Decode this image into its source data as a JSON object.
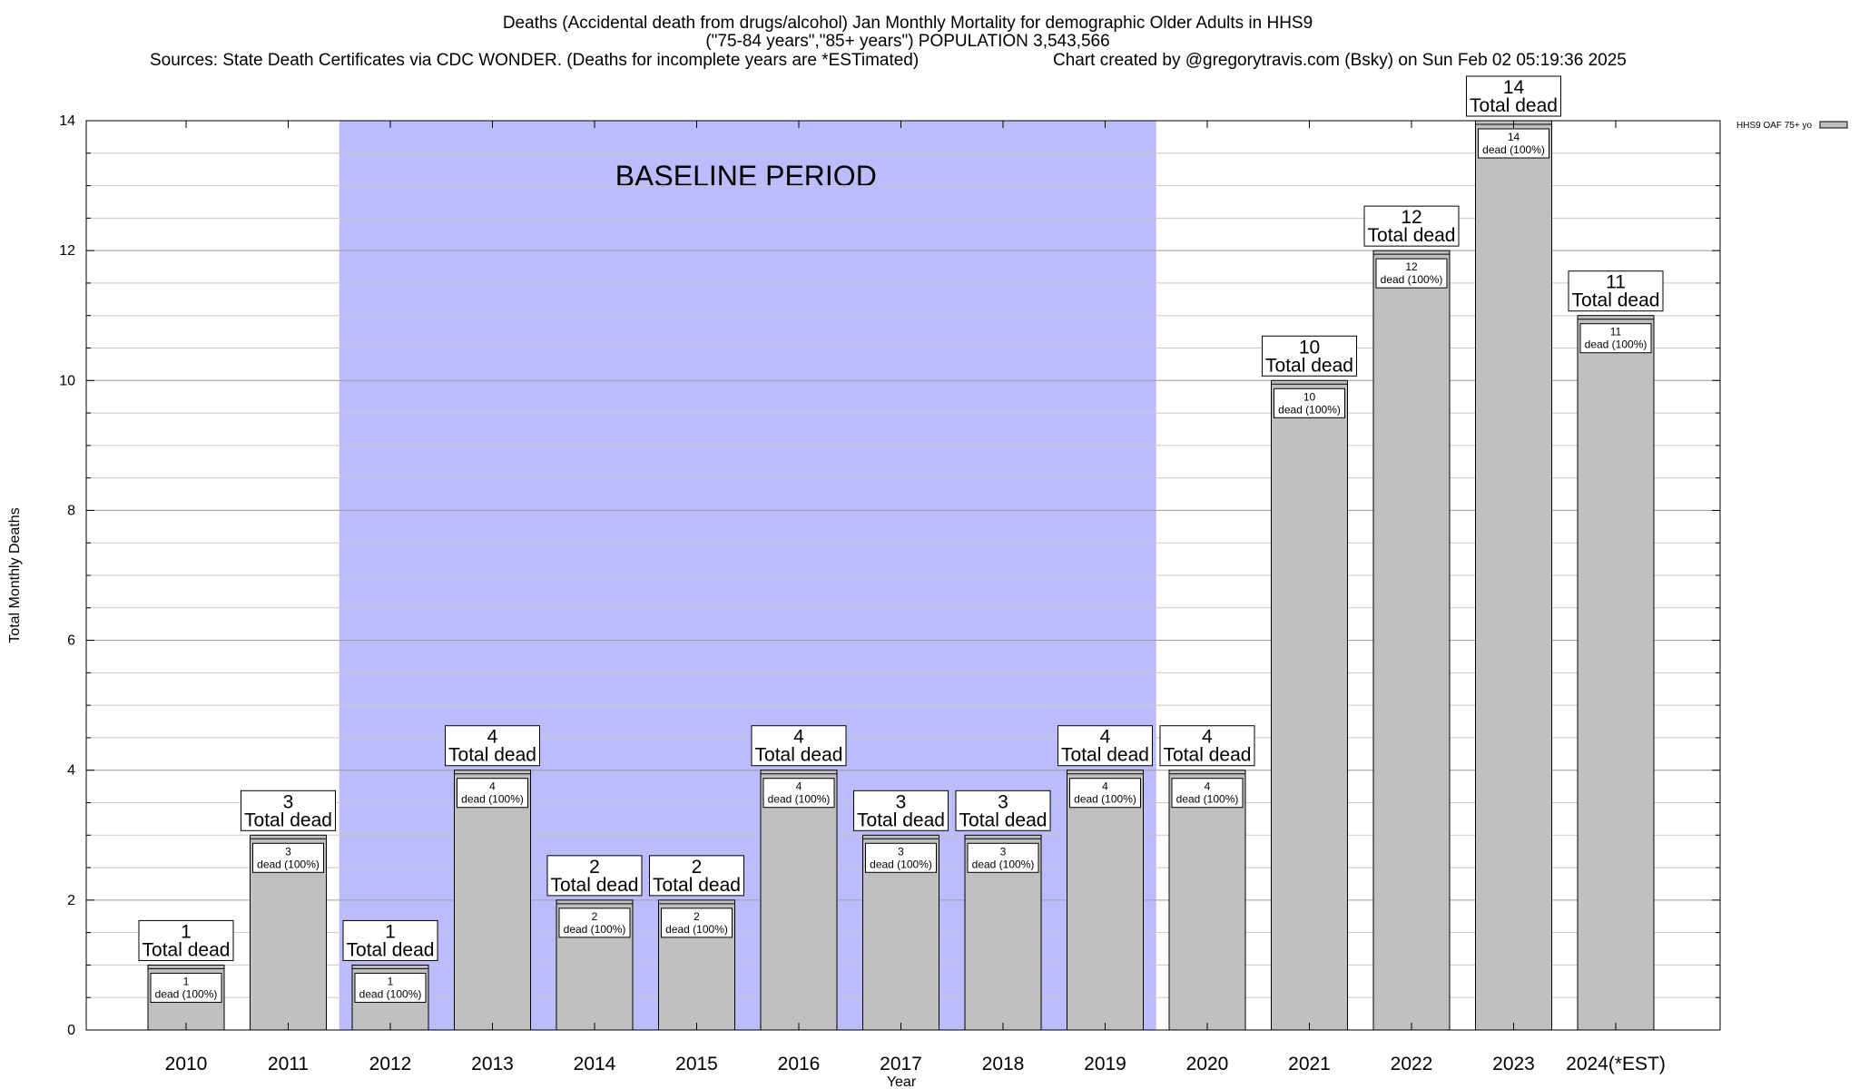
{
  "chart_data": {
    "type": "bar",
    "title_lines": [
      "Deaths (Accidental death from drugs/alcohol) Jan Monthly Mortality for demographic Older Adults in HHS9",
      "(\"75-84 years\",\"85+ years\") POPULATION 3,543,566"
    ],
    "sources": "Sources: State Death Certificates via CDC WONDER. (Deaths for incomplete years are *ESTimated)",
    "credit": "Chart created by @gregorytravis.com (Bsky) on Sun Feb 02 05:19:36 2025",
    "xlabel": "Year",
    "ylabel": "Total Monthly Deaths",
    "ylim": [
      0,
      14
    ],
    "y_ticks": [
      "0",
      "2",
      "4",
      "6",
      "8",
      "10",
      "12",
      "14"
    ],
    "grid": true,
    "baseline": {
      "label": "BASELINE PERIOD",
      "from": "2012",
      "to": "2019",
      "color": "#bcbcfc"
    },
    "bar_color": "#c0c0c0",
    "total_label_suffix": "Total dead",
    "inner_label_suffix": "dead (100%)",
    "categories": [
      "2010",
      "2011",
      "2012",
      "2013",
      "2014",
      "2015",
      "2016",
      "2017",
      "2018",
      "2019",
      "2020",
      "2021",
      "2022",
      "2023",
      "2024(*EST)"
    ],
    "series": [
      {
        "name": "HHS9 OAF 75+ yo",
        "values": [
          1,
          3,
          1,
          4,
          2,
          2,
          4,
          3,
          3,
          4,
          4,
          10,
          12,
          14,
          11
        ]
      }
    ],
    "legend_position": "top-right"
  }
}
